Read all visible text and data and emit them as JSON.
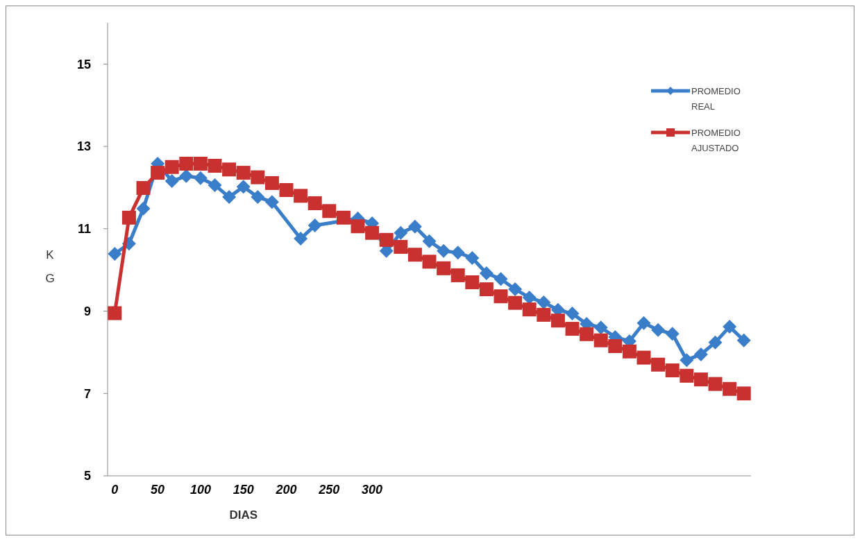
{
  "chart_data": {
    "type": "line",
    "xlabel": "DIAS",
    "ylabel": "KG",
    "ylim": [
      5,
      16
    ],
    "yticks": [
      5,
      7,
      9,
      11,
      13,
      15
    ],
    "grid": false,
    "legend": "top right",
    "line_style": "solid",
    "categories": [
      "0",
      null,
      null,
      "50",
      null,
      null,
      "100",
      null,
      null,
      "150",
      null,
      null,
      "200",
      null,
      null,
      "250",
      null,
      null,
      "300",
      null,
      null,
      null,
      null,
      null,
      null,
      null,
      null,
      null,
      null,
      null,
      null,
      null,
      null,
      null,
      null,
      null,
      null,
      null,
      null,
      null,
      null,
      null,
      null,
      null,
      null
    ],
    "series": [
      {
        "name": "PROMEDIO REAL",
        "color": "#3a7dc9",
        "marker": "diamond",
        "values": [
          10.39,
          10.64,
          11.49,
          12.58,
          12.16,
          12.28,
          12.23,
          12.06,
          11.77,
          12.02,
          11.77,
          11.65,
          null,
          10.76,
          11.08,
          null,
          null,
          11.25,
          11.13,
          10.46,
          10.9,
          11.05,
          10.7,
          10.46,
          10.42,
          10.29,
          9.92,
          9.78,
          9.53,
          9.33,
          9.21,
          9.03,
          8.94,
          8.69,
          8.6,
          8.37,
          8.27,
          8.71,
          8.54,
          8.45,
          7.81,
          7.95,
          8.24,
          8.62,
          8.29
        ]
      },
      {
        "name": "PROMEDIO AJUSTADO",
        "color": "#c8312f",
        "marker": "square",
        "values": [
          8.95,
          11.27,
          11.99,
          12.36,
          12.5,
          12.58,
          12.58,
          12.53,
          12.44,
          12.36,
          12.25,
          12.11,
          11.94,
          11.8,
          11.62,
          11.43,
          11.27,
          11.06,
          10.9,
          10.73,
          10.56,
          10.37,
          10.2,
          10.04,
          9.87,
          9.7,
          9.53,
          9.36,
          9.2,
          9.04,
          8.91,
          8.77,
          8.57,
          8.44,
          8.29,
          8.15,
          8.02,
          7.87,
          7.7,
          7.56,
          7.43,
          7.34,
          7.23,
          7.11,
          7.0
        ]
      }
    ]
  }
}
